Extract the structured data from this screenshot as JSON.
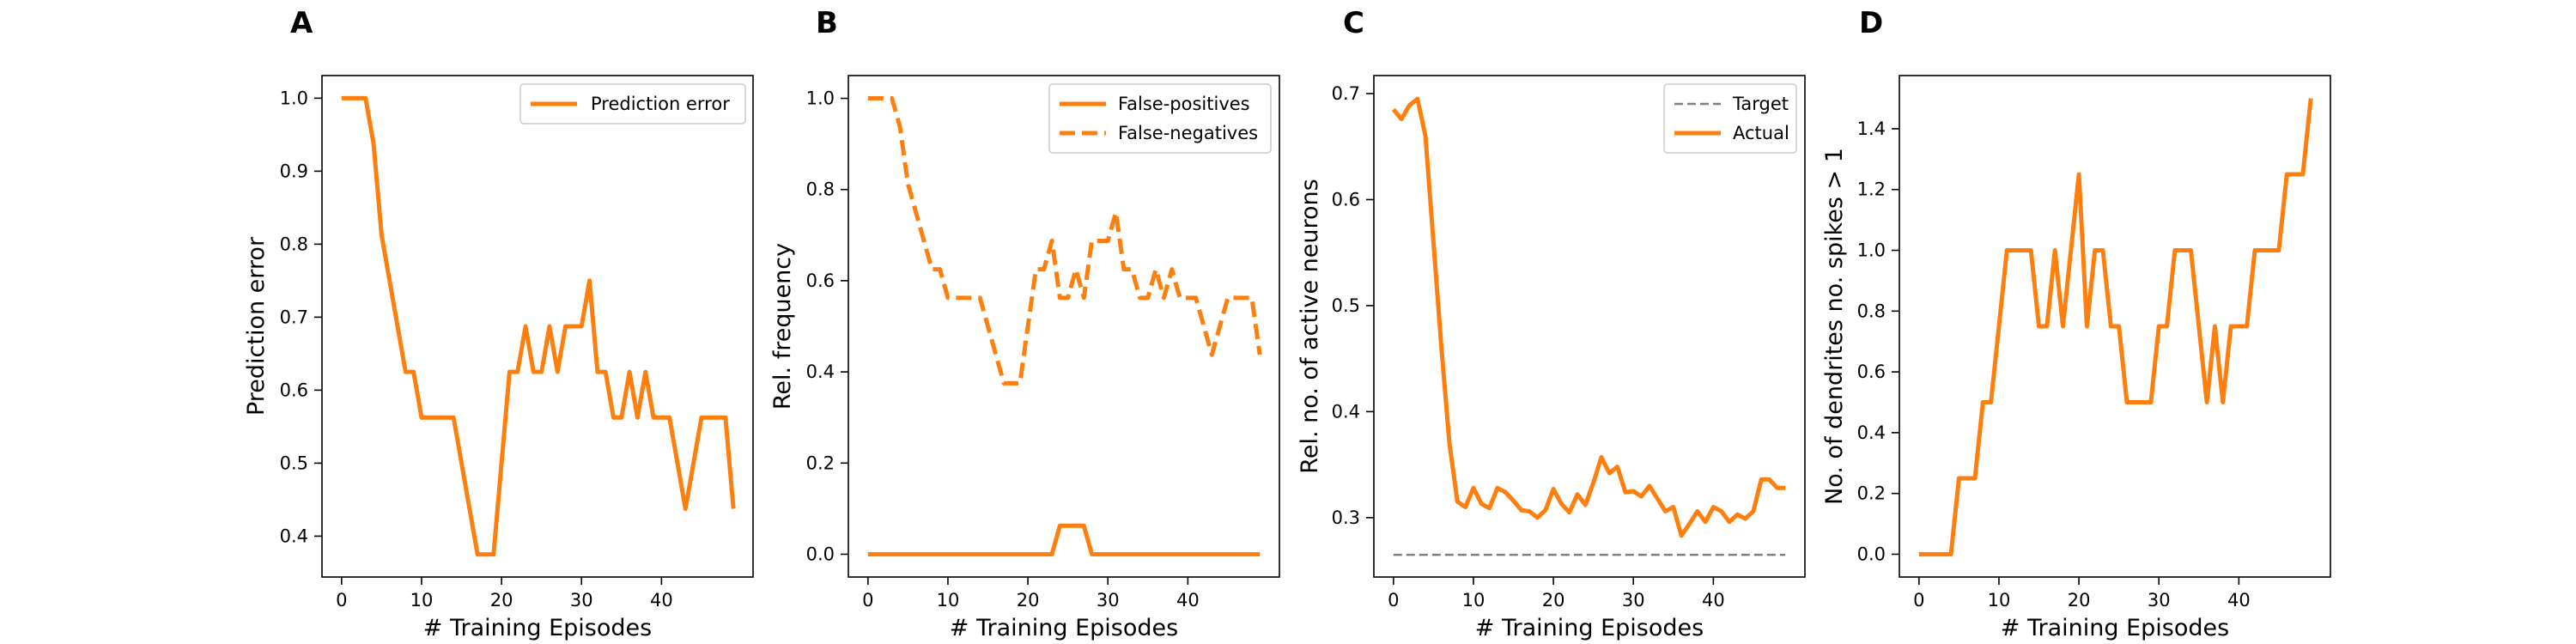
{
  "colors": {
    "series": "#ff7f0e",
    "target": "#808080"
  },
  "chart_data": [
    {
      "panel": "A",
      "type": "line",
      "xlabel": "# Training Episodes",
      "ylabel": "Prediction error",
      "xlim": [
        -2.45,
        51.45
      ],
      "ylim": [
        0.344,
        1.031
      ],
      "xticks": [
        0,
        10,
        20,
        30,
        40
      ],
      "yticks": [
        0.4,
        0.5,
        0.6,
        0.7,
        0.8,
        0.9,
        1.0
      ],
      "ytick_labels": [
        "0.4",
        "0.5",
        "0.6",
        "0.7",
        "0.8",
        "0.9",
        "1.0"
      ],
      "legend": "top-right",
      "x": [
        0,
        1,
        2,
        3,
        4,
        5,
        6,
        7,
        8,
        9,
        10,
        11,
        12,
        13,
        14,
        15,
        16,
        17,
        18,
        19,
        20,
        21,
        22,
        23,
        24,
        25,
        26,
        27,
        28,
        29,
        30,
        31,
        32,
        33,
        34,
        35,
        36,
        37,
        38,
        39,
        40,
        41,
        42,
        43,
        44,
        45,
        46,
        47,
        48,
        49
      ],
      "series": [
        {
          "name": "Prediction error",
          "style": "solid",
          "values": [
            1.0,
            1.0,
            1.0,
            1.0,
            0.9375,
            0.8125,
            0.75,
            0.6875,
            0.625,
            0.625,
            0.5625,
            0.5625,
            0.5625,
            0.5625,
            0.5625,
            0.5,
            0.4375,
            0.375,
            0.375,
            0.375,
            0.5,
            0.625,
            0.625,
            0.6875,
            0.625,
            0.625,
            0.6875,
            0.625,
            0.6875,
            0.6875,
            0.6875,
            0.75,
            0.625,
            0.625,
            0.5625,
            0.5625,
            0.625,
            0.5625,
            0.625,
            0.5625,
            0.5625,
            0.5625,
            0.5,
            0.4375,
            0.5,
            0.5625,
            0.5625,
            0.5625,
            0.5625,
            0.4375
          ]
        }
      ]
    },
    {
      "panel": "B",
      "type": "line",
      "xlabel": "# Training Episodes",
      "ylabel": "Rel. frequency",
      "xlim": [
        -2.45,
        51.45
      ],
      "ylim": [
        -0.05,
        1.05
      ],
      "xticks": [
        0,
        10,
        20,
        30,
        40
      ],
      "yticks": [
        0.0,
        0.2,
        0.4,
        0.6,
        0.8,
        1.0
      ],
      "ytick_labels": [
        "0.0",
        "0.2",
        "0.4",
        "0.6",
        "0.8",
        "1.0"
      ],
      "legend": "top-right",
      "x": [
        0,
        1,
        2,
        3,
        4,
        5,
        6,
        7,
        8,
        9,
        10,
        11,
        12,
        13,
        14,
        15,
        16,
        17,
        18,
        19,
        20,
        21,
        22,
        23,
        24,
        25,
        26,
        27,
        28,
        29,
        30,
        31,
        32,
        33,
        34,
        35,
        36,
        37,
        38,
        39,
        40,
        41,
        42,
        43,
        44,
        45,
        46,
        47,
        48,
        49
      ],
      "series": [
        {
          "name": "False-positives",
          "style": "solid",
          "values": [
            0,
            0,
            0,
            0,
            0,
            0,
            0,
            0,
            0,
            0,
            0,
            0,
            0,
            0,
            0,
            0,
            0,
            0,
            0,
            0,
            0,
            0,
            0,
            0,
            0.0625,
            0.0625,
            0.0625,
            0.0625,
            0,
            0,
            0,
            0,
            0,
            0,
            0,
            0,
            0,
            0,
            0,
            0,
            0,
            0,
            0,
            0,
            0,
            0,
            0,
            0,
            0,
            0
          ]
        },
        {
          "name": "False-negatives",
          "style": "dashed",
          "values": [
            1.0,
            1.0,
            1.0,
            1.0,
            0.9375,
            0.8125,
            0.75,
            0.6875,
            0.625,
            0.625,
            0.5625,
            0.5625,
            0.5625,
            0.5625,
            0.5625,
            0.5,
            0.4375,
            0.375,
            0.375,
            0.375,
            0.5,
            0.625,
            0.625,
            0.6875,
            0.5625,
            0.5625,
            0.625,
            0.5625,
            0.6875,
            0.6875,
            0.6875,
            0.75,
            0.625,
            0.625,
            0.5625,
            0.5625,
            0.625,
            0.5625,
            0.625,
            0.5625,
            0.5625,
            0.5625,
            0.5,
            0.4375,
            0.5,
            0.5625,
            0.5625,
            0.5625,
            0.5625,
            0.4375
          ]
        }
      ]
    },
    {
      "panel": "C",
      "type": "line",
      "xlabel": "# Training Episodes",
      "ylabel": "Rel. no. of active neurons",
      "xlim": [
        -2.45,
        51.45
      ],
      "ylim": [
        0.244,
        0.717
      ],
      "xticks": [
        0,
        10,
        20,
        30,
        40
      ],
      "yticks": [
        0.3,
        0.4,
        0.5,
        0.6,
        0.7
      ],
      "ytick_labels": [
        "0.3",
        "0.4",
        "0.5",
        "0.6",
        "0.7"
      ],
      "legend": "top-right",
      "x": [
        0,
        1,
        2,
        3,
        4,
        5,
        6,
        7,
        8,
        9,
        10,
        11,
        12,
        13,
        14,
        15,
        16,
        17,
        18,
        19,
        20,
        21,
        22,
        23,
        24,
        25,
        26,
        27,
        28,
        29,
        30,
        31,
        32,
        33,
        34,
        35,
        36,
        37,
        38,
        39,
        40,
        41,
        42,
        43,
        44,
        45,
        46,
        47,
        48,
        49
      ],
      "series": [
        {
          "name": "Target",
          "style": "dashed-thin",
          "values": [
            0.265,
            0.265
          ],
          "x": [
            0,
            49
          ]
        },
        {
          "name": "Actual",
          "style": "solid",
          "values": [
            0.685,
            0.676,
            0.689,
            0.695,
            0.66,
            0.56,
            0.46,
            0.37,
            0.315,
            0.31,
            0.328,
            0.313,
            0.309,
            0.328,
            0.324,
            0.316,
            0.307,
            0.306,
            0.3,
            0.307,
            0.327,
            0.313,
            0.305,
            0.322,
            0.312,
            0.333,
            0.357,
            0.342,
            0.348,
            0.324,
            0.325,
            0.32,
            0.33,
            0.318,
            0.306,
            0.31,
            0.283,
            0.294,
            0.306,
            0.296,
            0.31,
            0.306,
            0.296,
            0.303,
            0.299,
            0.306,
            0.336,
            0.336,
            0.328,
            0.328
          ]
        }
      ]
    },
    {
      "panel": "D",
      "type": "line",
      "xlabel": "# Training Episodes",
      "ylabel": "No. of dendrites no. spikes > 1",
      "xlim": [
        -2.45,
        51.45
      ],
      "ylim": [
        -0.075,
        1.575
      ],
      "xticks": [
        0,
        10,
        20,
        30,
        40
      ],
      "yticks": [
        0.0,
        0.2,
        0.4,
        0.6,
        0.8,
        1.0,
        1.2,
        1.4
      ],
      "ytick_labels": [
        "0.0",
        "0.2",
        "0.4",
        "0.6",
        "0.8",
        "1.0",
        "1.2",
        "1.4"
      ],
      "x": [
        0,
        1,
        2,
        3,
        4,
        5,
        6,
        7,
        8,
        9,
        10,
        11,
        12,
        13,
        14,
        15,
        16,
        17,
        18,
        19,
        20,
        21,
        22,
        23,
        24,
        25,
        26,
        27,
        28,
        29,
        30,
        31,
        32,
        33,
        34,
        35,
        36,
        37,
        38,
        39,
        40,
        41,
        42,
        43,
        44,
        45,
        46,
        47,
        48,
        49
      ],
      "series": [
        {
          "style": "solid",
          "values": [
            0,
            0,
            0,
            0,
            0,
            0.25,
            0.25,
            0.25,
            0.5,
            0.5,
            0.75,
            1.0,
            1.0,
            1.0,
            1.0,
            0.75,
            0.75,
            1.0,
            0.75,
            1.0,
            1.25,
            0.75,
            1.0,
            1.0,
            0.75,
            0.75,
            0.5,
            0.5,
            0.5,
            0.5,
            0.75,
            0.75,
            1.0,
            1.0,
            1.0,
            0.75,
            0.5,
            0.75,
            0.5,
            0.75,
            0.75,
            0.75,
            1.0,
            1.0,
            1.0,
            1.0,
            1.25,
            1.25,
            1.25,
            1.5
          ]
        }
      ]
    }
  ]
}
